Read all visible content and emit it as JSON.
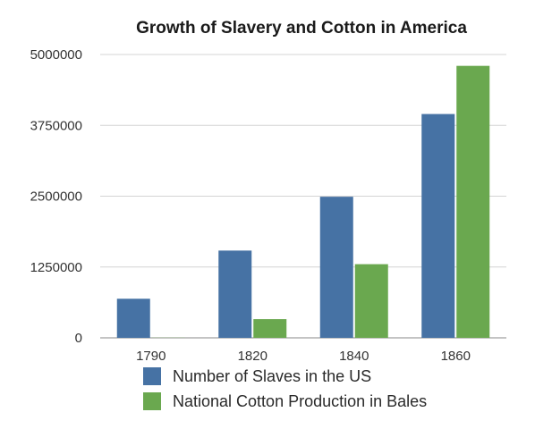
{
  "chart_data": {
    "type": "bar",
    "title": "Growth of Slavery and Cotton in America",
    "xlabel": "",
    "ylabel": "",
    "categories": [
      "1790",
      "1820",
      "1840",
      "1860"
    ],
    "series": [
      {
        "name": "Number of Slaves in the US",
        "values": [
          690000,
          1540000,
          2490000,
          3950000
        ],
        "color": "#4672a4"
      },
      {
        "name": "National Cotton Production in Bales",
        "values": [
          3000,
          330000,
          1300000,
          4800000
        ],
        "color": "#6aa84f"
      }
    ],
    "ylim": [
      0,
      5000000
    ],
    "yticks": [
      "0",
      "1250000",
      "2500000",
      "3750000",
      "5000000"
    ],
    "grid": true,
    "legend_position": "bottom-center"
  }
}
